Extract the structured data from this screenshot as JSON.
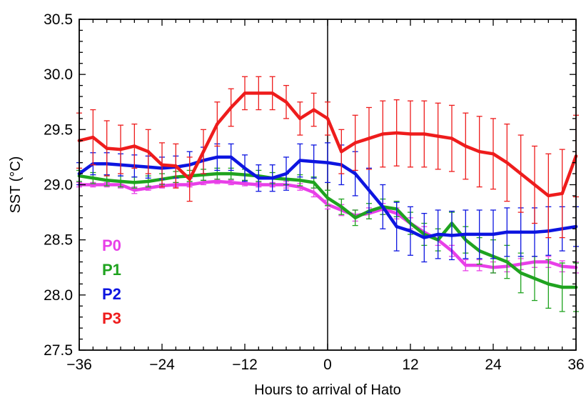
{
  "chart_data": {
    "type": "line",
    "title": "",
    "xlabel": "Hours to arrival of Hato",
    "ylabel": "SST (°C)",
    "xlim": [
      -36,
      36
    ],
    "ylim": [
      27.5,
      30.5
    ],
    "xticks": [
      -36,
      -24,
      -12,
      0,
      12,
      24,
      36
    ],
    "xtick_labels": [
      "−36",
      "−24",
      "−12",
      "0",
      "12",
      "24",
      "36"
    ],
    "yticks": [
      27.5,
      28.0,
      28.5,
      29.0,
      29.5,
      30.0,
      30.5
    ],
    "ytick_labels": [
      "27.5",
      "28.0",
      "28.5",
      "29.0",
      "29.5",
      "30.0",
      "30.5"
    ],
    "reference_line_x": 0,
    "grid": false,
    "legend_position": "bottom-left",
    "series": [
      {
        "name": "P0",
        "color": "#e83fe8",
        "x": [
          -36,
          -34,
          -32,
          -30,
          -28,
          -26,
          -24,
          -22,
          -20,
          -18,
          -16,
          -14,
          -12,
          -10,
          -8,
          -6,
          -4,
          -2,
          0,
          2,
          4,
          6,
          8,
          10,
          12,
          14,
          16,
          18,
          20,
          22,
          24,
          26,
          28,
          30,
          32,
          34,
          36
        ],
        "y": [
          29.0,
          29.0,
          29.0,
          29.0,
          28.95,
          28.97,
          28.99,
          29.0,
          29.0,
          29.02,
          29.03,
          29.02,
          29.01,
          29.0,
          29.0,
          29.0,
          28.98,
          28.93,
          28.82,
          28.77,
          28.72,
          28.74,
          28.78,
          28.74,
          28.65,
          28.57,
          28.5,
          28.4,
          28.27,
          28.27,
          28.25,
          28.26,
          28.28,
          28.3,
          28.3,
          28.26,
          28.25
        ],
        "err": [
          0.02,
          0.02,
          0.02,
          0.03,
          0.03,
          0.02,
          0.02,
          0.02,
          0.02,
          0.02,
          0.02,
          0.02,
          0.02,
          0.02,
          0.02,
          0.03,
          0.03,
          0.04,
          0.04,
          0.05,
          0.05,
          0.05,
          0.05,
          0.05,
          0.05,
          0.05,
          0.05,
          0.05,
          0.05,
          0.05,
          0.05,
          0.05,
          0.05,
          0.05,
          0.05,
          0.05,
          0.05
        ]
      },
      {
        "name": "P1",
        "color": "#1fa31f",
        "x": [
          -36,
          -34,
          -32,
          -30,
          -28,
          -26,
          -24,
          -22,
          -20,
          -18,
          -16,
          -14,
          -12,
          -10,
          -8,
          -6,
          -4,
          -2,
          0,
          2,
          4,
          6,
          8,
          10,
          12,
          14,
          16,
          18,
          20,
          22,
          24,
          26,
          28,
          30,
          32,
          34,
          36
        ],
        "y": [
          29.08,
          29.06,
          29.04,
          29.03,
          29.02,
          29.03,
          29.05,
          29.07,
          29.08,
          29.09,
          29.1,
          29.1,
          29.09,
          29.08,
          29.06,
          29.05,
          29.04,
          29.02,
          28.88,
          28.8,
          28.7,
          28.76,
          28.8,
          28.78,
          28.65,
          28.55,
          28.5,
          28.65,
          28.5,
          28.4,
          28.35,
          28.3,
          28.2,
          28.15,
          28.1,
          28.07,
          28.07
        ],
        "err": [
          0.05,
          0.05,
          0.05,
          0.05,
          0.05,
          0.05,
          0.05,
          0.05,
          0.05,
          0.05,
          0.05,
          0.05,
          0.05,
          0.05,
          0.05,
          0.05,
          0.05,
          0.05,
          0.07,
          0.07,
          0.07,
          0.07,
          0.07,
          0.07,
          0.1,
          0.1,
          0.1,
          0.1,
          0.12,
          0.12,
          0.15,
          0.15,
          0.18,
          0.2,
          0.22,
          0.22,
          0.22
        ]
      },
      {
        "name": "P2",
        "color": "#0d15e0",
        "x": [
          -36,
          -34,
          -32,
          -30,
          -28,
          -26,
          -24,
          -22,
          -20,
          -18,
          -16,
          -14,
          -12,
          -10,
          -8,
          -6,
          -4,
          -2,
          0,
          2,
          4,
          6,
          8,
          10,
          12,
          14,
          16,
          18,
          20,
          22,
          24,
          26,
          28,
          30,
          32,
          34,
          36
        ],
        "y": [
          29.1,
          29.19,
          29.19,
          29.18,
          29.17,
          29.16,
          29.15,
          29.16,
          29.18,
          29.22,
          29.25,
          29.25,
          29.15,
          29.06,
          29.06,
          29.1,
          29.22,
          29.21,
          29.2,
          29.18,
          29.1,
          28.95,
          28.8,
          28.62,
          28.58,
          28.52,
          28.55,
          28.54,
          28.55,
          28.55,
          28.55,
          28.57,
          28.57,
          28.57,
          28.58,
          28.6,
          28.62
        ],
        "err": [
          0.1,
          0.1,
          0.1,
          0.1,
          0.1,
          0.1,
          0.1,
          0.1,
          0.12,
          0.12,
          0.12,
          0.12,
          0.12,
          0.12,
          0.12,
          0.15,
          0.15,
          0.15,
          0.18,
          0.18,
          0.2,
          0.2,
          0.2,
          0.22,
          0.22,
          0.22,
          0.22,
          0.22,
          0.22,
          0.22,
          0.22,
          0.22,
          0.22,
          0.22,
          0.22,
          0.2,
          0.18
        ]
      },
      {
        "name": "P3",
        "color": "#ee1c1c",
        "x": [
          -36,
          -34,
          -32,
          -30,
          -28,
          -26,
          -24,
          -22,
          -20,
          -18,
          -16,
          -14,
          -12,
          -10,
          -8,
          -6,
          -4,
          -2,
          0,
          2,
          4,
          6,
          8,
          10,
          12,
          14,
          16,
          18,
          20,
          22,
          24,
          26,
          28,
          30,
          32,
          34,
          36
        ],
        "y": [
          29.4,
          29.43,
          29.33,
          29.32,
          29.35,
          29.3,
          29.18,
          29.17,
          29.05,
          29.3,
          29.55,
          29.7,
          29.83,
          29.83,
          29.83,
          29.75,
          29.6,
          29.68,
          29.6,
          29.3,
          29.38,
          29.42,
          29.46,
          29.47,
          29.46,
          29.46,
          29.44,
          29.42,
          29.35,
          29.3,
          29.28,
          29.2,
          29.1,
          29.0,
          28.9,
          28.92,
          29.26
        ],
        "err": [
          0.25,
          0.25,
          0.25,
          0.22,
          0.2,
          0.2,
          0.2,
          0.2,
          0.2,
          0.2,
          0.2,
          0.17,
          0.15,
          0.15,
          0.15,
          0.15,
          0.15,
          0.15,
          0.15,
          0.2,
          0.25,
          0.28,
          0.3,
          0.3,
          0.3,
          0.3,
          0.3,
          0.3,
          0.3,
          0.32,
          0.32,
          0.35,
          0.35,
          0.35,
          0.38,
          0.4,
          0.37
        ]
      }
    ]
  }
}
